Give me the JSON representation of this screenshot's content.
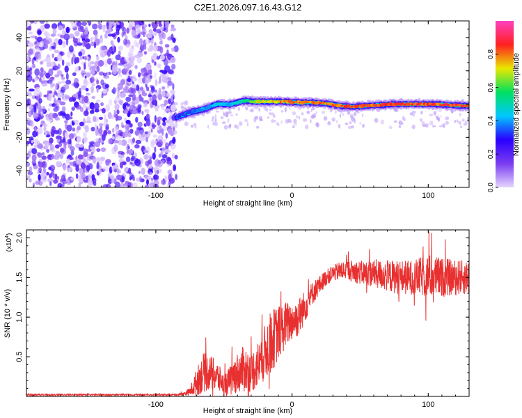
{
  "figure_title": "C2E1.2026.097.16.43.G12",
  "chart_data": [
    {
      "type": "heatmap",
      "title": "C2E1.2026.097.16.43.G12",
      "xlabel": "Height of straight line (km)",
      "ylabel": "Frequency (Hz)",
      "xlim": [
        -195,
        130
      ],
      "ylim": [
        -50,
        50
      ],
      "x_ticks": [
        {
          "value": -100,
          "label": "-100"
        },
        {
          "value": 0,
          "label": "0"
        },
        {
          "value": 100,
          "label": "100"
        }
      ],
      "y_ticks": [
        {
          "value": 40,
          "label": "40"
        },
        {
          "value": 20,
          "label": "20"
        },
        {
          "value": 0,
          "label": "0"
        },
        {
          "value": -20,
          "label": "-20"
        },
        {
          "value": -40,
          "label": "-40"
        }
      ],
      "noise_region_x": [
        -195,
        -85
      ],
      "signal_track": {
        "x": [
          -85,
          -75,
          -65,
          -55,
          -45,
          -35,
          -25,
          -15,
          -5,
          5,
          15,
          25,
          35,
          45,
          55,
          65,
          75,
          85,
          95,
          105,
          115,
          125,
          130
        ],
        "freq_hz": [
          -8,
          -5,
          -3,
          0,
          0,
          2,
          1.5,
          1.5,
          1.5,
          1,
          1,
          0.5,
          -1,
          -1.5,
          -1,
          -0.5,
          0,
          0,
          0,
          0,
          -0.5,
          -1,
          -1
        ],
        "amplitude": [
          0.35,
          0.35,
          0.4,
          0.5,
          0.45,
          0.55,
          0.75,
          0.8,
          0.85,
          0.85,
          0.85,
          0.85,
          0.9,
          0.9,
          0.9,
          0.9,
          0.9,
          0.9,
          0.9,
          0.9,
          0.9,
          0.9,
          0.9
        ]
      },
      "colorbar": {
        "label": "Normalized spectral amplitude",
        "range": [
          0,
          1
        ],
        "ticks": [
          {
            "value": 0.0,
            "label": "0.0"
          },
          {
            "value": 0.2,
            "label": "0.2"
          },
          {
            "value": 0.4,
            "label": "0.4"
          },
          {
            "value": 0.6,
            "label": "0.6"
          },
          {
            "value": 0.8,
            "label": "0.8"
          }
        ],
        "stops": [
          "#e6d5ff",
          "#7a3df0",
          "#2a00ff",
          "#00c8ff",
          "#00e060",
          "#e8e800",
          "#ff2020",
          "#ff40c0"
        ]
      }
    },
    {
      "type": "line",
      "xlabel": "Height of straight line (km)",
      "ylabel": "SNR (10 * v/v)",
      "y_exponent_label": "(x10",
      "y_exponent_sup": "4",
      "y_exponent_close": ")",
      "xlim": [
        -195,
        130
      ],
      "ylim": [
        0,
        2.1
      ],
      "x_ticks": [
        {
          "value": -100,
          "label": "-100"
        },
        {
          "value": 0,
          "label": "0"
        },
        {
          "value": 100,
          "label": "100"
        }
      ],
      "y_ticks": [
        {
          "value": 0.5,
          "label": "0.5"
        },
        {
          "value": 1.0,
          "label": "1.0"
        },
        {
          "value": 1.5,
          "label": "1.5"
        },
        {
          "value": 2.0,
          "label": "2.0"
        }
      ],
      "color": "#e83030",
      "series": [
        {
          "name": "SNR",
          "x": [
            -195,
            -150,
            -100,
            -85,
            -80,
            -75,
            -70,
            -65,
            -60,
            -55,
            -50,
            -45,
            -40,
            -35,
            -30,
            -25,
            -20,
            -15,
            -10,
            -5,
            0,
            5,
            10,
            15,
            20,
            25,
            30,
            35,
            40,
            45,
            50,
            60,
            70,
            80,
            90,
            100,
            110,
            120,
            130
          ],
          "trend": [
            0.02,
            0.02,
            0.02,
            0.02,
            0.03,
            0.06,
            0.18,
            0.3,
            0.3,
            0.25,
            0.15,
            0.2,
            0.3,
            0.35,
            0.3,
            0.4,
            0.55,
            0.7,
            0.8,
            0.9,
            0.95,
            1.0,
            1.15,
            1.3,
            1.4,
            1.5,
            1.55,
            1.58,
            1.6,
            1.58,
            1.56,
            1.55,
            1.52,
            1.5,
            1.5,
            1.52,
            1.5,
            1.5,
            1.5
          ],
          "noise": [
            0.01,
            0.01,
            0.01,
            0.01,
            0.02,
            0.05,
            0.18,
            0.25,
            0.22,
            0.2,
            0.12,
            0.2,
            0.25,
            0.3,
            0.25,
            0.3,
            0.35,
            0.4,
            0.35,
            0.3,
            0.25,
            0.25,
            0.2,
            0.15,
            0.12,
            0.1,
            0.1,
            0.12,
            0.12,
            0.14,
            0.15,
            0.18,
            0.2,
            0.22,
            0.22,
            0.28,
            0.25,
            0.22,
            0.22
          ]
        }
      ]
    }
  ]
}
